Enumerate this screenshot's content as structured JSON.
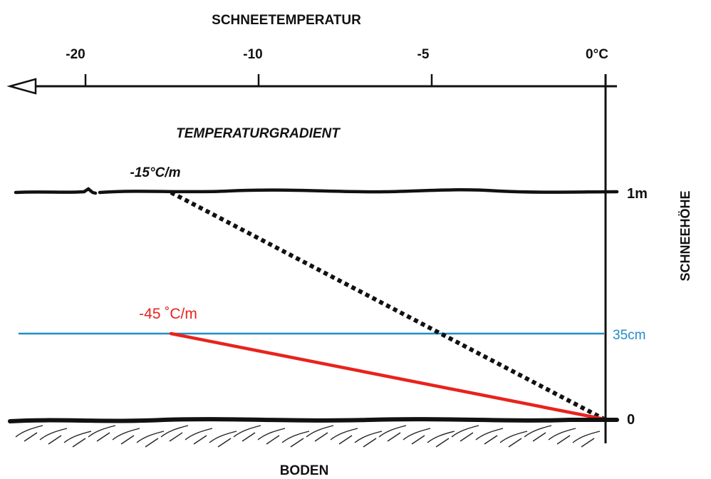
{
  "diagram": {
    "top_axis_title": "SCHNEETEMPERATUR",
    "ticks": [
      {
        "label": "-20",
        "value": -20
      },
      {
        "label": "-10",
        "value": -10
      },
      {
        "label": "-5",
        "value": -5
      },
      {
        "label": "0°C",
        "value": 0
      }
    ],
    "gradient_title": "TEMPERATURGRADIENT",
    "gradient_1": {
      "label": "-15°C/m",
      "color": "#000000"
    },
    "gradient_2": {
      "label": "-45 ˚C/m",
      "color": "#e8231d"
    },
    "height_axis_title": "SCHNEEHÖHE",
    "height_labels": {
      "top": "1m",
      "mid": "35cm",
      "bottom": "0"
    },
    "mid_line_color": "#1f8ec6",
    "ground_label": "BODEN"
  }
}
